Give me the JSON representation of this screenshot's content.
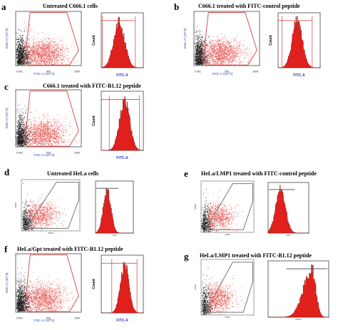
{
  "panels": {
    "a": {
      "letter": "a",
      "title": "Untreated C666.1 cells"
    },
    "b": {
      "letter": "b",
      "title": "C666.1 treated with FITC-control peptide"
    },
    "c": {
      "letter": "c",
      "title": "C666.1 treated with FITC-B1.12 peptide"
    },
    "d": {
      "letter": "d",
      "title": "Untreated HeLa cells"
    },
    "e": {
      "letter": "e",
      "title": "HeLa/LMP1 treated with FITC-control peptide"
    },
    "f": {
      "letter": "f",
      "title": "HeLa/Gpt treated with FITC-B1.12 peptide"
    },
    "g": {
      "letter": "g",
      "title": "HeLa/LMP1 treated with FITC-B1.12 peptide"
    }
  },
  "axes": {
    "ssc_label": "SSC-A (10^3)",
    "fsc_label": "FSC-A (10^3)",
    "count_label": "Count",
    "fitc_label": "FITC-A",
    "tick_0001": "0.001",
    "tick_500": "500",
    "tick_1000": "1000",
    "tick_500b": "500"
  },
  "colors": {
    "dots_black": "#1a1a1a",
    "dots_red": "#e0201c",
    "gate": "#d9534f",
    "axis_blue": "#2a3bb8",
    "grey_gate": "#777777"
  }
}
